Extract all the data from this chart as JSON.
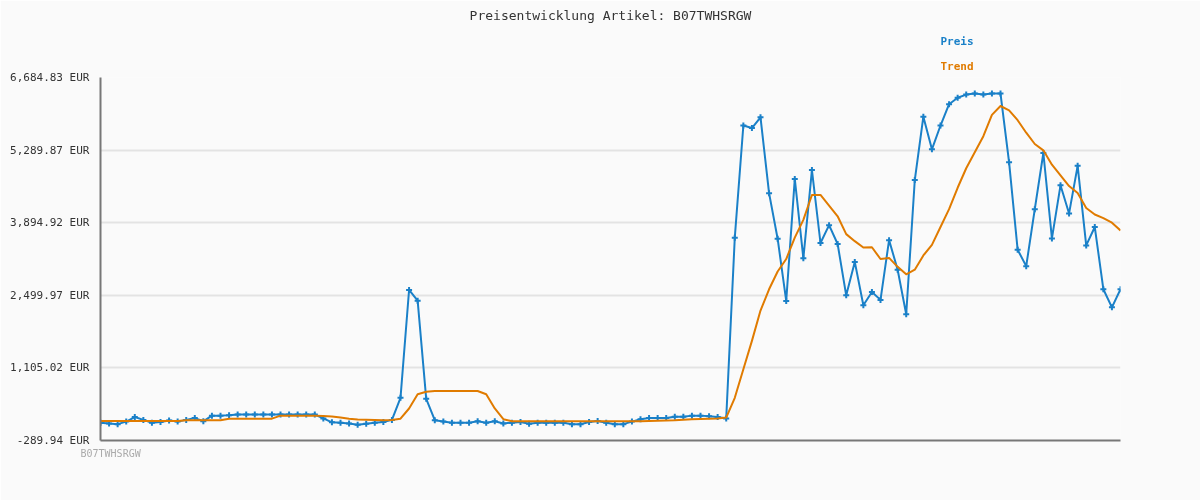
{
  "chart_data": {
    "type": "line",
    "title": "Preisentwicklung Artikel: B07TWHSRGW",
    "categories": [
      null,
      null,
      null,
      null,
      null,
      null,
      null,
      null,
      null,
      null,
      null,
      null,
      null,
      null,
      null,
      null,
      null,
      null,
      null,
      null,
      null,
      null,
      null,
      null,
      null,
      null,
      null,
      null,
      null,
      null,
      null,
      null,
      null,
      null,
      null,
      null,
      null,
      null,
      null,
      null,
      null,
      null,
      null,
      null,
      null,
      null,
      null,
      null,
      null,
      null,
      null,
      null,
      null,
      null,
      null,
      null,
      null,
      null,
      null,
      null,
      null,
      null,
      null,
      null,
      null,
      null,
      null,
      null,
      null,
      null,
      null,
      null,
      null,
      null,
      null,
      null,
      null,
      null,
      null,
      null,
      null,
      null,
      null,
      null,
      null,
      null,
      null,
      null,
      null,
      null,
      null,
      null,
      null,
      null,
      null,
      null,
      null,
      null,
      null,
      null,
      null,
      null,
      null,
      null,
      null,
      null,
      null,
      null,
      null,
      null,
      null,
      null,
      null,
      null,
      null,
      null,
      null,
      null,
      null,
      null
    ],
    "series": [
      {
        "name": "Preis",
        "color": "#1a80c8",
        "marker": "cross",
        "values": [
          50,
          38,
          24,
          73,
          161,
          106,
          52,
          65,
          94,
          73,
          106,
          141,
          79,
          188,
          188,
          196,
          209,
          209,
          209,
          209,
          209,
          209,
          209,
          209,
          209,
          209,
          135,
          59,
          52,
          38,
          12,
          32,
          52,
          65,
          106,
          530,
          2602,
          2397,
          510,
          100,
          73,
          52,
          52,
          52,
          79,
          52,
          79,
          38,
          52,
          65,
          32,
          52,
          52,
          52,
          52,
          24,
          24,
          65,
          85,
          52,
          24,
          24,
          73,
          119,
          141,
          141,
          141,
          167,
          167,
          188,
          188,
          176,
          161,
          135,
          3607,
          5762,
          5714,
          5920,
          4463,
          3587,
          2391,
          4736,
          3211,
          4906,
          3505,
          3848,
          3485,
          2500,
          3142,
          2309,
          2562,
          2412,
          3560,
          2992,
          2137,
          4715,
          5932,
          5304,
          5762,
          6172,
          6295,
          6357,
          6377,
          6357,
          6377,
          6377,
          5058,
          3376,
          3060,
          4155,
          5234,
          3593,
          4613,
          4073,
          4988,
          3458,
          3812,
          2617,
          2268,
          2617
        ]
      },
      {
        "name": "Trend",
        "color": "#e07b00",
        "marker": "none",
        "values": [
          85,
          85,
          85,
          85,
          85,
          85,
          85,
          85,
          85,
          85,
          100,
          100,
          100,
          100,
          100,
          130,
          130,
          130,
          130,
          130,
          130,
          188,
          188,
          188,
          188,
          188,
          180,
          170,
          150,
          130,
          115,
          110,
          105,
          100,
          105,
          130,
          325,
          598,
          647,
          660,
          660,
          660,
          660,
          660,
          660,
          598,
          325,
          120,
          79,
          79,
          79,
          79,
          79,
          79,
          79,
          79,
          79,
          79,
          79,
          79,
          79,
          79,
          79,
          79,
          85,
          90,
          95,
          100,
          110,
          120,
          125,
          130,
          135,
          150,
          530,
          1078,
          1624,
          2206,
          2616,
          2957,
          3197,
          3607,
          3950,
          4428,
          4428,
          4223,
          4018,
          3675,
          3540,
          3417,
          3423,
          3197,
          3218,
          3047,
          2904,
          2992,
          3265,
          3470,
          3813,
          4155,
          4566,
          4941,
          5249,
          5557,
          5967,
          6137,
          6055,
          5864,
          5624,
          5407,
          5285,
          5010,
          4805,
          4600,
          4464,
          4176,
          4053,
          3984,
          3895,
          3745
        ]
      }
    ],
    "ylim": [
      -289.94,
      6684.83
    ],
    "yticks": [
      {
        "value": -289.94,
        "label": "-289.94 EUR"
      },
      {
        "value": 1105.02,
        "label": "1,105.02 EUR"
      },
      {
        "value": 2499.97,
        "label": "2,499.97 EUR"
      },
      {
        "value": 3894.92,
        "label": "3,894.92 EUR"
      },
      {
        "value": 5289.87,
        "label": "5,289.87 EUR"
      },
      {
        "value": 6684.83,
        "label": "6,684.83 EUR"
      }
    ],
    "grid": "y",
    "tick_labels": "y",
    "annotations": [
      "B07TWHSRGW"
    ]
  }
}
